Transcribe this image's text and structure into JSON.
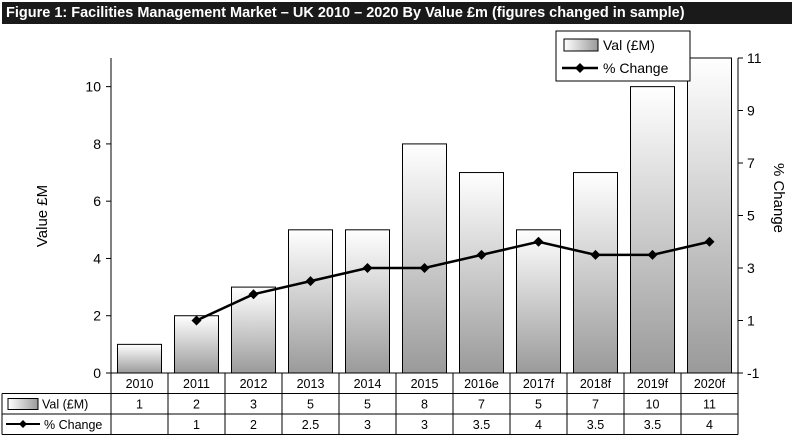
{
  "title": "Figure 1: Facilities Management Market – UK 2010 – 2020 By Value £m (figures changed in sample)",
  "chart_data": {
    "type": "bar",
    "title": "Figure 1: Facilities Management Market – UK 2010 – 2020 By Value £m (figures changed in sample)",
    "categories": [
      "2010",
      "2011",
      "2012",
      "2013",
      "2014",
      "2015",
      "2016e",
      "2017f",
      "2018f",
      "2019f",
      "2020f"
    ],
    "ylabel": "Value £M",
    "y2label": "% Change",
    "ylim": [
      0,
      11
    ],
    "y2lim": [
      -1,
      11
    ],
    "yticks": [
      "0",
      "2",
      "4",
      "6",
      "8",
      "10"
    ],
    "y2ticks": [
      "-1",
      "1",
      "3",
      "5",
      "7",
      "9",
      "11"
    ],
    "series": [
      {
        "name": "Val (£M)",
        "type": "bar",
        "axis": "left",
        "values": [
          1,
          2,
          3,
          5,
          5,
          8,
          7,
          5,
          7,
          10,
          11
        ],
        "labels": [
          "1",
          "2",
          "3",
          "5",
          "5",
          "8",
          "7",
          "5",
          "7",
          "10",
          "11"
        ]
      },
      {
        "name": "% Change",
        "type": "line",
        "axis": "right",
        "values": [
          null,
          1,
          2,
          2.5,
          3,
          3,
          3.5,
          4,
          3.5,
          3.5,
          4
        ],
        "labels": [
          "",
          "1",
          "2",
          "2.5",
          "3",
          "3",
          "3.5",
          "4",
          "3.5",
          "3.5",
          "4"
        ]
      }
    ],
    "legend": "top-right",
    "data_table": true,
    "grid": false,
    "colors": {
      "bar_top": "#ffffff",
      "bar_bottom": "#9a9a9a",
      "line": "#000000",
      "axis": "#000000"
    }
  }
}
